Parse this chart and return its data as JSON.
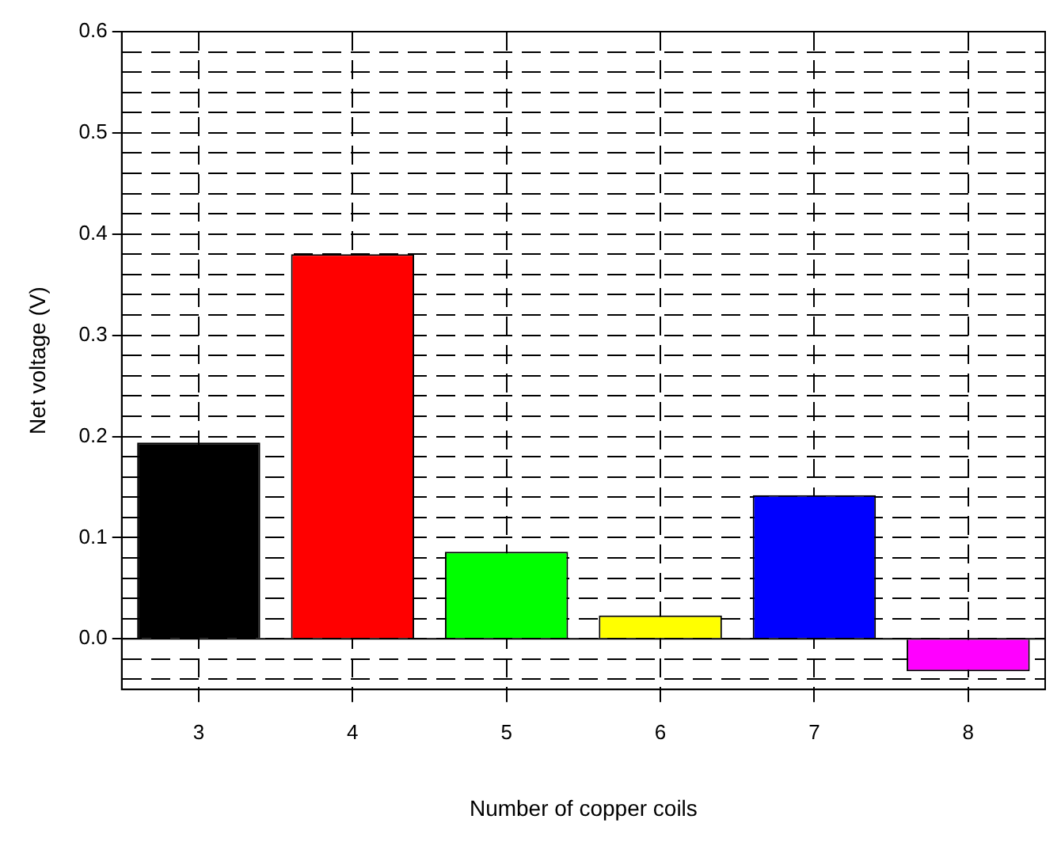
{
  "chart_data": {
    "type": "bar",
    "xlabel": "Number of copper coils",
    "ylabel": "Net voltage (V)",
    "categories": [
      "3",
      "4",
      "5",
      "6",
      "7",
      "8"
    ],
    "values": [
      0.194,
      0.38,
      0.086,
      0.023,
      0.142,
      -0.032
    ],
    "colors": [
      "#000000",
      "#ff0000",
      "#00ff00",
      "#ffff00",
      "#0000ff",
      "#ff00ff"
    ],
    "ylim": [
      -0.05,
      0.6
    ],
    "yticks": [
      {
        "value": -0.04,
        "label": null
      },
      {
        "value": -0.02,
        "label": null
      },
      "0.0",
      {
        "value": 0.02,
        "label": null
      },
      {
        "value": 0.04,
        "label": null
      },
      {
        "value": 0.06,
        "label": null
      },
      {
        "value": 0.08,
        "label": null
      },
      {
        "value": 0.1,
        "label": "0.1"
      },
      {
        "value": 0.12,
        "label": null
      },
      {
        "value": 0.14,
        "label": null
      },
      {
        "value": 0.16,
        "label": null
      },
      {
        "value": 0.18,
        "label": null
      },
      {
        "value": 0.2,
        "label": "0.2"
      },
      {
        "value": 0.22,
        "label": null
      },
      {
        "value": 0.24,
        "label": null
      },
      {
        "value": 0.26,
        "label": null
      },
      {
        "value": 0.28,
        "label": null
      },
      {
        "value": 0.3,
        "label": "0.3"
      },
      {
        "value": 0.32,
        "label": null
      },
      {
        "value": 0.34,
        "label": null
      },
      {
        "value": 0.36,
        "label": null
      },
      {
        "value": 0.38,
        "label": null
      },
      {
        "value": 0.4,
        "label": "0.4"
      },
      {
        "value": 0.42,
        "label": null
      },
      {
        "value": 0.44,
        "label": null
      },
      {
        "value": 0.46,
        "label": null
      },
      {
        "value": 0.48,
        "label": null
      },
      {
        "value": 0.5,
        "label": "0.5"
      },
      {
        "value": 0.52,
        "label": null
      },
      {
        "value": 0.54,
        "label": null
      },
      {
        "value": 0.56,
        "label": null
      },
      {
        "value": 0.58,
        "label": null
      },
      {
        "value": 0.6,
        "label": "0.6"
      }
    ],
    "grid": true,
    "ref_lines": [
      {
        "axis": "y",
        "value": 0,
        "label": null,
        "color": "#000000",
        "line_style": "solid"
      }
    ]
  }
}
